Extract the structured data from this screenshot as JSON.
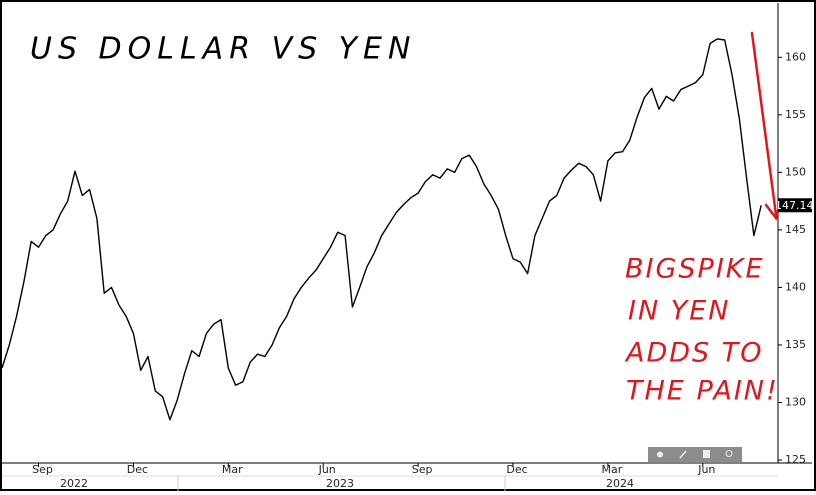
{
  "chart_data": {
    "type": "line",
    "title": "US DOLLAR VS YEN",
    "annotation": [
      "BIGSPIKE",
      "IN YEN",
      "ADDS TO",
      "THE PAIN!"
    ],
    "annotation_color": "#e3151a",
    "color": "#000000",
    "categories": [
      null,
      null,
      null,
      null,
      null,
      "Sep",
      null,
      null,
      null,
      null,
      null,
      null,
      null,
      null,
      null,
      null,
      null,
      null,
      "Dec",
      null,
      null,
      null,
      null,
      null,
      null,
      null,
      null,
      null,
      null,
      null,
      null,
      "Mar",
      null,
      null,
      null,
      null,
      null,
      null,
      null,
      null,
      null,
      null,
      null,
      null,
      "Jun",
      null,
      null,
      null,
      null,
      null,
      null,
      null,
      null,
      null,
      null,
      null,
      null,
      "Sep",
      null,
      null,
      null,
      null,
      null,
      null,
      null,
      null,
      null,
      null,
      null,
      null,
      "Dec",
      null,
      null,
      null,
      null,
      null,
      null,
      null,
      null,
      null,
      null,
      null,
      null,
      "Mar",
      null,
      null,
      null,
      null,
      null,
      null,
      null,
      null,
      null,
      null,
      null,
      null,
      "Jun",
      null,
      null,
      null,
      null,
      null,
      null,
      null,
      null
    ],
    "x_groups": [
      "2022",
      "2023",
      "2024"
    ],
    "values": [
      133.0,
      135,
      137.5,
      140.5,
      144,
      143.5,
      144.5,
      145,
      146.4,
      147.5,
      150.1,
      148,
      148.5,
      146,
      139.5,
      140,
      138.5,
      137.5,
      136,
      132.8,
      134,
      131,
      130.5,
      128.5,
      130.2,
      132.5,
      134.5,
      134,
      136,
      136.8,
      137.2,
      133,
      131.5,
      131.8,
      133.5,
      134.2,
      134,
      135,
      136.5,
      137.5,
      139,
      140,
      140.8,
      141.5,
      142.5,
      143.5,
      144.8,
      144.5,
      138.3,
      140,
      141.8,
      143,
      144.5,
      145.5,
      146.5,
      147.2,
      147.8,
      148.2,
      149.2,
      149.8,
      149.5,
      150.3,
      150,
      151.2,
      151.5,
      150.5,
      149,
      148,
      146.8,
      144.5,
      142.5,
      142.2,
      141.2,
      144.5,
      146,
      147.5,
      148,
      149.5,
      150.2,
      150.8,
      150.5,
      149.8,
      147.5,
      151,
      151.7,
      151.8,
      152.8,
      154.8,
      156.5,
      157.3,
      155.5,
      156.6,
      156.2,
      157.2,
      157.5,
      157.8,
      158.5,
      161.2,
      161.6,
      161.5,
      158.5,
      154.7,
      149.5,
      144.5,
      147.14
    ],
    "ylim": [
      124.74,
      164.72
    ],
    "yticks": [
      125,
      130,
      135,
      140,
      145,
      150,
      155,
      160
    ],
    "y_axis_side": "right"
  }
}
